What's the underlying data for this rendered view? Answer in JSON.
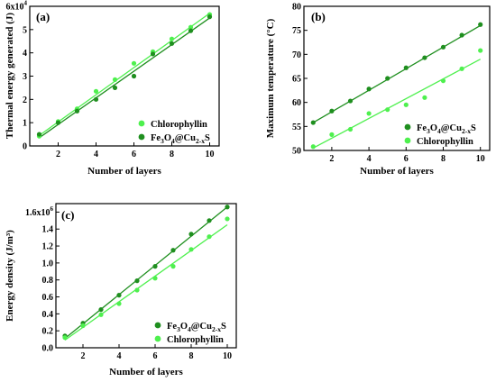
{
  "chart_data": [
    {
      "type": "scatter",
      "panel_label": "(a)",
      "xlabel": "Number of layers",
      "ylabel": "Thermal energy generated (J)",
      "xlim": [
        0.5,
        10.5
      ],
      "ylim": [
        0,
        60000
      ],
      "x_ticks": [
        2,
        4,
        6,
        8,
        10
      ],
      "y_ticks": [
        0,
        10000,
        20000,
        30000,
        40000,
        50000,
        60000
      ],
      "y_tick_labels": [
        "0",
        "1",
        "2",
        "3",
        "4",
        "5",
        "6x10^4"
      ],
      "legend_position": "bottom-right",
      "series": [
        {
          "name": "Chlorophyllin",
          "color": "#4ef04e",
          "x": [
            1,
            2,
            3,
            4,
            5,
            6,
            7,
            8,
            9,
            10
          ],
          "y": [
            4200,
            10500,
            16000,
            23500,
            28500,
            35500,
            40500,
            46000,
            51000,
            56500
          ],
          "fit": [
            1,
            4500,
            10,
            57000
          ]
        },
        {
          "name": "Fe3O4@Cu2-xS",
          "name_parts": {
            "a": "Fe",
            "b": "3",
            "c": "O",
            "d": "4",
            "e": "@Cu",
            "f": "2-x",
            "g": "S"
          },
          "color": "#1f8f1f",
          "x": [
            1,
            2,
            3,
            4,
            5,
            6,
            7,
            8,
            9,
            10
          ],
          "y": [
            5000,
            10000,
            15000,
            20000,
            25000,
            30000,
            39500,
            44000,
            49500,
            55500
          ],
          "fit": [
            1,
            3500,
            10,
            55000
          ]
        }
      ]
    },
    {
      "type": "scatter",
      "panel_label": "(b)",
      "xlabel": "Number of layers",
      "ylabel": "Maximum temperature (°C)",
      "xlim": [
        0.5,
        10.5
      ],
      "ylim": [
        50,
        80
      ],
      "x_ticks": [
        2,
        4,
        6,
        8,
        10
      ],
      "y_ticks": [
        50,
        55,
        60,
        65,
        70,
        75,
        80
      ],
      "y_tick_labels": [
        "50",
        "55",
        "60",
        "65",
        "70",
        "75",
        "80"
      ],
      "legend_position": "bottom-right",
      "series": [
        {
          "name": "Fe3O4@Cu2-xS",
          "name_parts": {
            "a": "Fe",
            "b": "3",
            "c": "O",
            "d": "4",
            "e": "@Cu",
            "f": "2-x",
            "g": "S"
          },
          "color": "#1f8f1f",
          "x": [
            1,
            2,
            3,
            4,
            5,
            6,
            7,
            8,
            9,
            10
          ],
          "y": [
            55.8,
            58.2,
            60.3,
            62.8,
            65.0,
            67.2,
            69.3,
            71.5,
            74.0,
            76.2
          ],
          "fit": [
            1,
            55.8,
            10,
            76.0
          ]
        },
        {
          "name": "Chlorophyllin",
          "color": "#4ef04e",
          "x": [
            1,
            2,
            3,
            4,
            5,
            6,
            7,
            8,
            9,
            10
          ],
          "y": [
            50.8,
            53.3,
            54.4,
            57.7,
            58.5,
            59.5,
            61.0,
            64.5,
            67.0,
            70.8
          ],
          "fit": [
            1,
            50.5,
            10,
            69.0
          ]
        }
      ]
    },
    {
      "type": "scatter",
      "panel_label": "(c)",
      "xlabel": "Number of layers",
      "ylabel": "Energy density (J/m³)",
      "xlim": [
        0.5,
        10.5
      ],
      "ylim": [
        0,
        1700000
      ],
      "x_ticks": [
        2,
        4,
        6,
        8,
        10
      ],
      "y_ticks": [
        0,
        200000,
        400000,
        600000,
        800000,
        1000000,
        1200000,
        1400000,
        1600000
      ],
      "y_tick_labels": [
        "0.0",
        "0.2",
        "0.4",
        "0.6",
        "0.8",
        "1.0",
        "1.2",
        "1.4",
        "1.6x10^6"
      ],
      "legend_position": "bottom-right",
      "series": [
        {
          "name": "Fe3O4@Cu2-xS",
          "name_parts": {
            "a": "Fe",
            "b": "3",
            "c": "O",
            "d": "4",
            "e": "@Cu",
            "f": "2-x",
            "g": "S"
          },
          "color": "#1f8f1f",
          "x": [
            1,
            2,
            3,
            4,
            5,
            6,
            7,
            8,
            9,
            10
          ],
          "y": [
            140000,
            290000,
            450000,
            620000,
            790000,
            960000,
            1150000,
            1340000,
            1500000,
            1660000
          ],
          "fit": [
            1,
            110000,
            10,
            1660000
          ]
        },
        {
          "name": "Chlorophyllin",
          "color": "#4ef04e",
          "x": [
            1,
            2,
            3,
            4,
            5,
            6,
            7,
            8,
            9,
            10
          ],
          "y": [
            120000,
            260000,
            390000,
            520000,
            680000,
            820000,
            960000,
            1160000,
            1310000,
            1520000
          ],
          "fit": [
            1,
            90000,
            10,
            1450000
          ]
        }
      ]
    }
  ]
}
